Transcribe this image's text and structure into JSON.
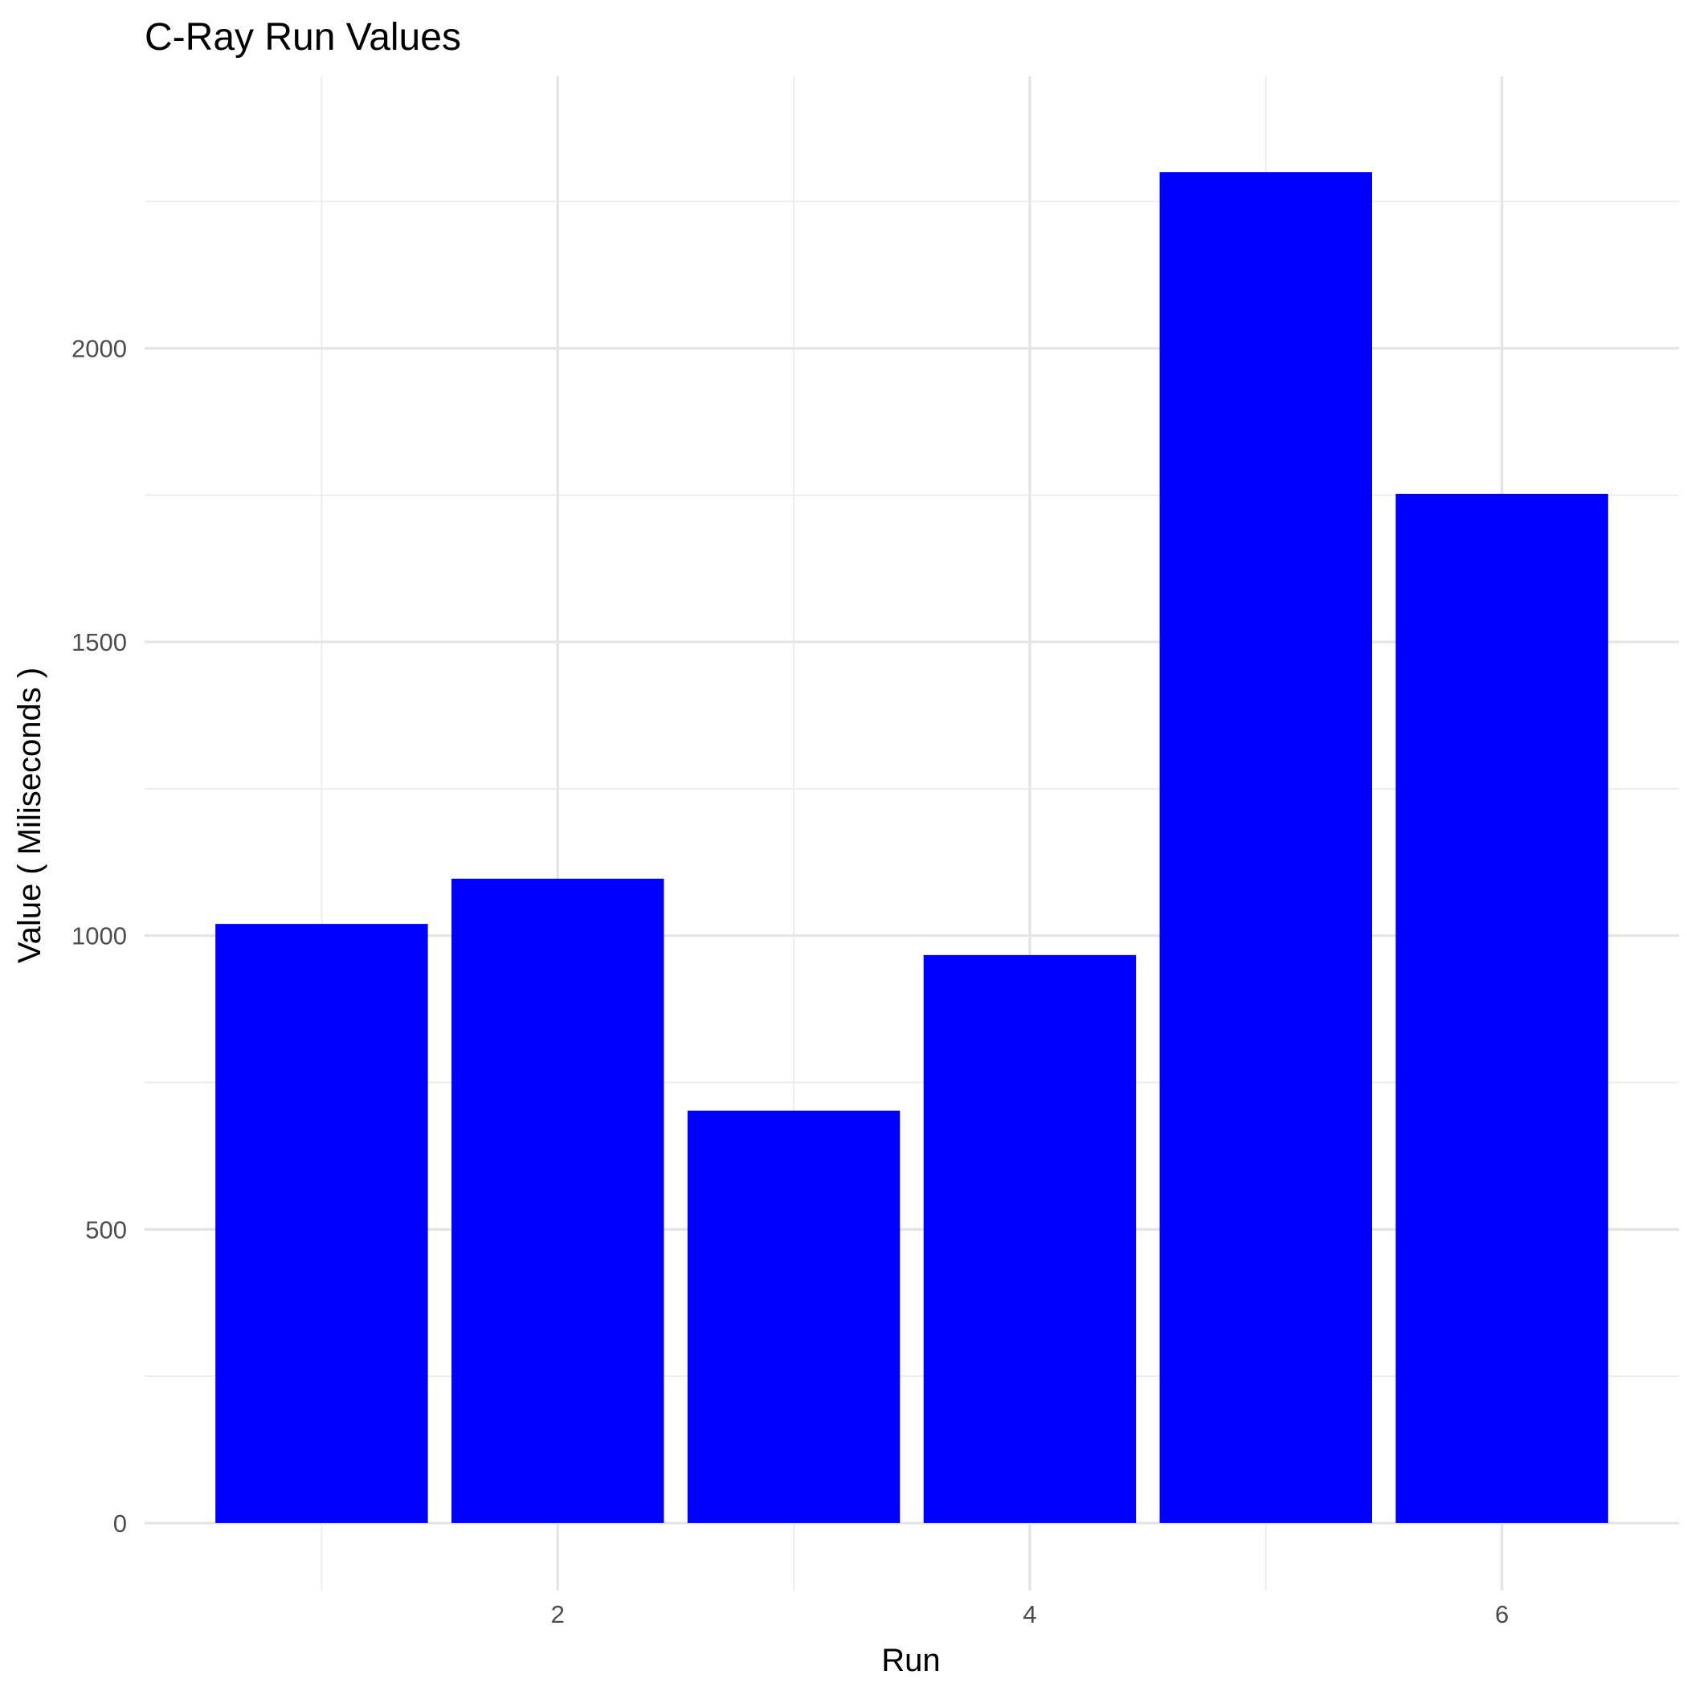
{
  "chart_data": {
    "type": "bar",
    "title": "C-Ray Run Values",
    "xlabel": "Run",
    "ylabel": "Value ( Miliseconds )",
    "x": [
      1,
      2,
      3,
      4,
      5,
      6
    ],
    "values": [
      1020,
      1097,
      702,
      967,
      2300,
      1752
    ],
    "xlim": [
      0.25,
      6.75
    ],
    "ylim": [
      -115,
      2463
    ],
    "x_ticks": [
      2,
      4,
      6
    ],
    "y_ticks": [
      0,
      500,
      1000,
      1500,
      2000
    ],
    "bar_color": "#0000FF",
    "grid": true,
    "legend": "none"
  }
}
